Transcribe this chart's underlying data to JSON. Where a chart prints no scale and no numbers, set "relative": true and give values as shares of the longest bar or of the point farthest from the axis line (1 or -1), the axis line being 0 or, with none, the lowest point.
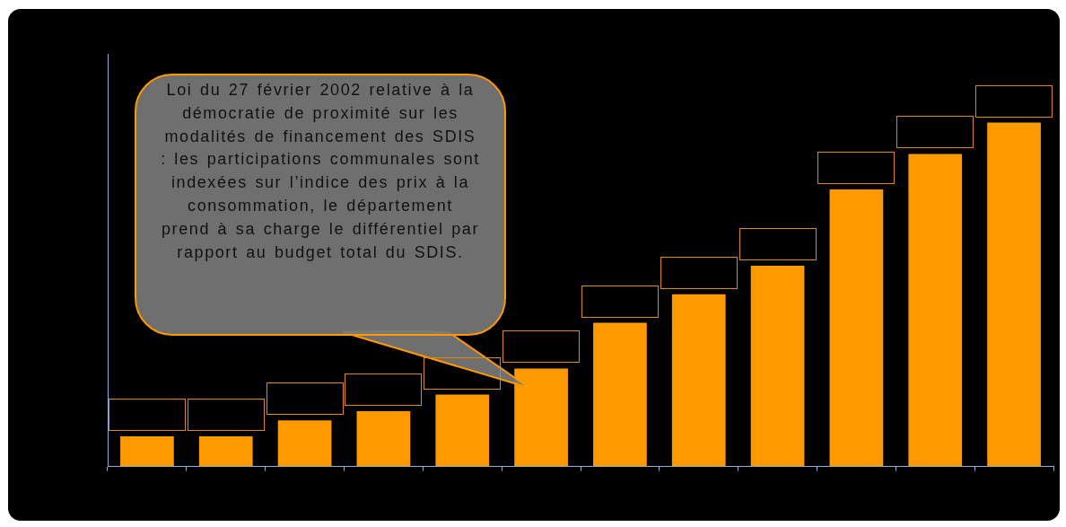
{
  "chart_data": {
    "type": "bar",
    "relative": true,
    "color": "#ff9900",
    "categories": [
      null,
      null,
      null,
      null,
      null,
      null,
      null,
      null,
      null,
      null,
      null,
      null
    ],
    "values": [
      0.088,
      0.088,
      0.134,
      0.161,
      0.209,
      0.285,
      0.418,
      0.501,
      0.584,
      0.806,
      0.909,
      1
    ],
    "annotations": [
      "Loi du 27 février 2002 relative à la démocratie de proximité sur les modalités de financement des SDIS : les participations communales sont indexées sur l’indice des prix à la consommation, le département prend à sa charge le différentiel par rapport au budget total du SDIS."
    ]
  }
}
